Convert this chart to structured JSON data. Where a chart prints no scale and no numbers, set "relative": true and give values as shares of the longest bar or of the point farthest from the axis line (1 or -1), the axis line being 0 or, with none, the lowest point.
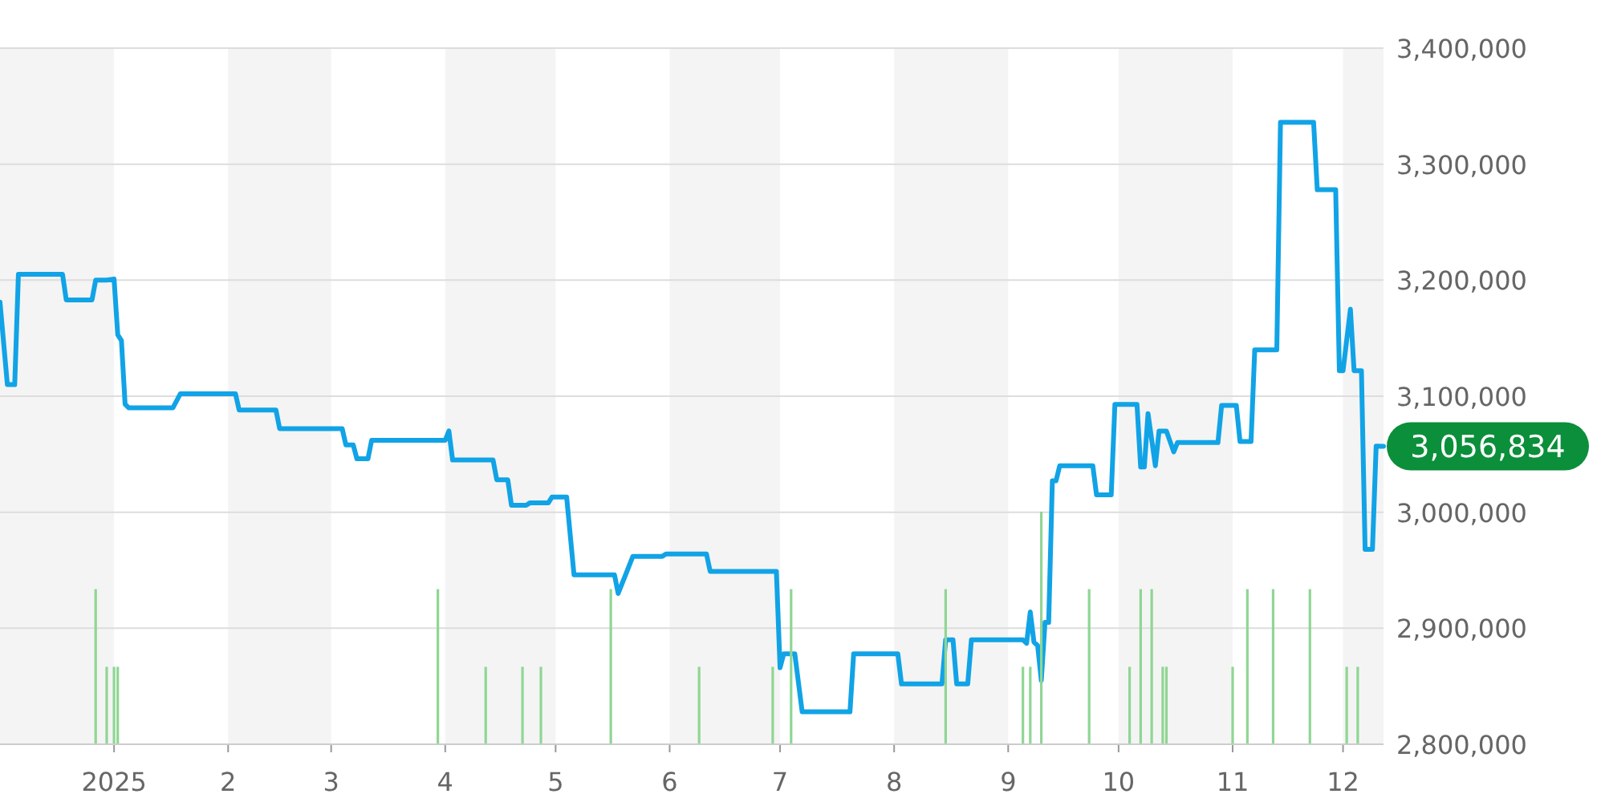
{
  "chart_data": [
    {
      "type": "line",
      "x": [
        "2024-12-01",
        "2024-12-03",
        "2024-12-05",
        "2024-12-06",
        "2024-12-18",
        "2024-12-19",
        "2024-12-26",
        "2024-12-27",
        "2024-12-30",
        "2025-01-01",
        "2025-01-02",
        "2025-01-03",
        "2025-01-04",
        "2025-01-05",
        "2025-01-17",
        "2025-01-19",
        "2025-02-03",
        "2025-02-04",
        "2025-02-14",
        "2025-02-15",
        "2025-03-04",
        "2025-03-05",
        "2025-03-07",
        "2025-03-08",
        "2025-03-11",
        "2025-03-12",
        "2025-04-01",
        "2025-04-02",
        "2025-04-03",
        "2025-04-14",
        "2025-04-15",
        "2025-04-18",
        "2025-04-19",
        "2025-04-23",
        "2025-04-24",
        "2025-04-29",
        "2025-04-30",
        "2025-05-04",
        "2025-05-06",
        "2025-05-17",
        "2025-05-18",
        "2025-05-20",
        "2025-05-22",
        "2025-05-30",
        "2025-05-31",
        "2025-06-11",
        "2025-06-12",
        "2025-06-30",
        "2025-07-01",
        "2025-07-02",
        "2025-07-05",
        "2025-07-07",
        "2025-07-20",
        "2025-07-21",
        "2025-08-02",
        "2025-08-03",
        "2025-08-14",
        "2025-08-15",
        "2025-08-17",
        "2025-08-18",
        "2025-08-21",
        "2025-08-22",
        "2025-09-05",
        "2025-09-06",
        "2025-09-07",
        "2025-09-08",
        "2025-09-09",
        "2025-09-10",
        "2025-09-11",
        "2025-09-12",
        "2025-09-13",
        "2025-09-14",
        "2025-09-15",
        "2025-09-24",
        "2025-09-25",
        "2025-09-29",
        "2025-09-30",
        "2025-10-06",
        "2025-10-07",
        "2025-10-08",
        "2025-10-09",
        "2025-10-11",
        "2025-10-12",
        "2025-10-14",
        "2025-10-16",
        "2025-10-17",
        "2025-10-28",
        "2025-10-29",
        "2025-11-02",
        "2025-11-03",
        "2025-11-06",
        "2025-11-07",
        "2025-11-13",
        "2025-11-14",
        "2025-11-23",
        "2025-11-24",
        "2025-11-29",
        "2025-11-30",
        "2025-12-01",
        "2025-12-03",
        "2025-12-04",
        "2025-12-06",
        "2025-12-07",
        "2025-12-09",
        "2025-12-10",
        "2025-12-12"
      ],
      "series": [
        {
          "color": "#11a3e6",
          "values": [
            3181000,
            3110000,
            3110000,
            3205000,
            3205000,
            3183000,
            3183000,
            3200000,
            3200000,
            3201000,
            3153000,
            3148000,
            3093000,
            3090000,
            3090000,
            3102000,
            3102000,
            3088000,
            3088000,
            3072000,
            3072000,
            3058000,
            3058000,
            3046000,
            3046000,
            3062000,
            3062000,
            3070000,
            3045000,
            3045000,
            3028000,
            3028000,
            3006000,
            3006000,
            3008000,
            3008000,
            3013000,
            3013000,
            2946000,
            2946000,
            2930000,
            2946000,
            2962000,
            2962000,
            2964000,
            2964000,
            2949000,
            2949000,
            2866000,
            2878000,
            2878000,
            2828000,
            2828000,
            2878000,
            2878000,
            2852000,
            2852000,
            2890000,
            2890000,
            2852000,
            2852000,
            2890000,
            2890000,
            2887000,
            2914000,
            2888000,
            2885000,
            2855000,
            2905000,
            2905000,
            3027000,
            3027000,
            3040000,
            3040000,
            3015000,
            3015000,
            3093000,
            3093000,
            3039000,
            3039000,
            3085000,
            3040000,
            3070000,
            3070000,
            3052000,
            3060000,
            3060000,
            3092000,
            3092000,
            3061000,
            3061000,
            3140000,
            3140000,
            3336000,
            3336000,
            3278000,
            3278000,
            3122000,
            3122000,
            3175000,
            3122000,
            3122000,
            2968000,
            2968000,
            3057000,
            3056834
          ]
        }
      ],
      "xlim": [
        "2024-12-01",
        "2025-12-12"
      ],
      "xticks": [
        {
          "value": "2025-01-01",
          "label": "2025"
        },
        {
          "value": "2025-02-01",
          "label": "2"
        },
        {
          "value": "2025-03-01",
          "label": "3"
        },
        {
          "value": "2025-04-01",
          "label": "4"
        },
        {
          "value": "2025-05-01",
          "label": "5"
        },
        {
          "value": "2025-06-01",
          "label": "6"
        },
        {
          "value": "2025-07-01",
          "label": "7"
        },
        {
          "value": "2025-08-01",
          "label": "8"
        },
        {
          "value": "2025-09-01",
          "label": "9"
        },
        {
          "value": "2025-10-01",
          "label": "10"
        },
        {
          "value": "2025-11-01",
          "label": "11"
        },
        {
          "value": "2025-12-01",
          "label": "12"
        }
      ],
      "ylim": [
        2800000,
        3400000
      ],
      "yticks": [
        {
          "value": 2800000,
          "label": "2,800,000"
        },
        {
          "value": 2900000,
          "label": "2,900,000"
        },
        {
          "value": 3000000,
          "label": "3,000,000"
        },
        {
          "value": 3100000,
          "label": "3,100,000"
        },
        {
          "value": 3200000,
          "label": "3,200,000"
        },
        {
          "value": 3300000,
          "label": "3,300,000"
        },
        {
          "value": 3400000,
          "label": "3,400,000"
        }
      ],
      "grid": "y",
      "line_style": "solid",
      "marker": "none",
      "bands": [
        {
          "axis": "x",
          "from": "2024-12-01",
          "to": "2025-01-01",
          "color": "#f4f4f4"
        },
        {
          "axis": "x",
          "from": "2025-02-01",
          "to": "2025-03-01",
          "color": "#f4f4f4"
        },
        {
          "axis": "x",
          "from": "2025-04-01",
          "to": "2025-05-01",
          "color": "#f4f4f4"
        },
        {
          "axis": "x",
          "from": "2025-06-01",
          "to": "2025-07-01",
          "color": "#f4f4f4"
        },
        {
          "axis": "x",
          "from": "2025-08-01",
          "to": "2025-09-01",
          "color": "#f4f4f4"
        },
        {
          "axis": "x",
          "from": "2025-10-01",
          "to": "2025-11-01",
          "color": "#f4f4f4"
        },
        {
          "axis": "x",
          "from": "2025-12-01",
          "to": "2025-12-12",
          "color": "#f4f4f4"
        }
      ],
      "annotations": [
        {
          "text": "3,056,834",
          "x": "2025-12-12",
          "y": 3056834
        }
      ]
    },
    {
      "type": "bar",
      "relative": true,
      "xlim": [
        "2024-12-01",
        "2025-12-12"
      ],
      "x": [
        "2024-12-27",
        "2024-12-30",
        "2025-01-01",
        "2025-01-02",
        "2025-03-30",
        "2025-04-12",
        "2025-04-22",
        "2025-04-27",
        "2025-05-16",
        "2025-06-09",
        "2025-06-29",
        "2025-07-04",
        "2025-08-15",
        "2025-09-05",
        "2025-09-07",
        "2025-09-10",
        "2025-09-23",
        "2025-10-04",
        "2025-10-07",
        "2025-10-10",
        "2025-10-13",
        "2025-10-14",
        "2025-11-01",
        "2025-11-05",
        "2025-11-12",
        "2025-11-22",
        "2025-12-02",
        "2025-12-05"
      ],
      "values": [
        0.667,
        0.333,
        0.333,
        0.333,
        0.667,
        0.333,
        0.333,
        0.333,
        0.667,
        0.333,
        0.333,
        0.667,
        0.667,
        0.333,
        0.333,
        1,
        0.667,
        0.333,
        0.667,
        0.667,
        0.333,
        0.333,
        0.333,
        0.667,
        0.667,
        0.667,
        0.333,
        0.333
      ],
      "color": "#8fd694"
    }
  ]
}
